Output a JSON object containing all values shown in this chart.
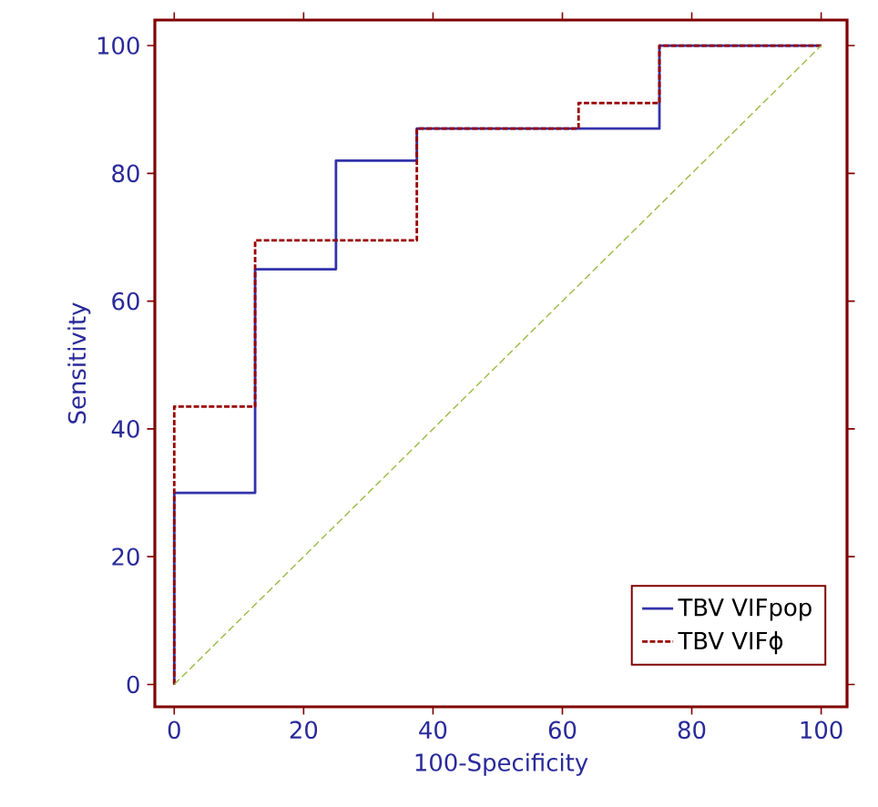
{
  "chart_data": {
    "type": "step",
    "xlabel": "100-Specificity",
    "ylabel": "Sensitivity",
    "xlim": [
      -3,
      104
    ],
    "ylim": [
      -3.5,
      104
    ],
    "xticks": [
      0,
      20,
      40,
      60,
      80,
      100
    ],
    "yticks": [
      0,
      20,
      40,
      60,
      80,
      100
    ],
    "legend": "bottom right",
    "grid": false,
    "marker": "none",
    "series": [
      {
        "name": "TBV VIFpop",
        "color": "#3333aa",
        "line_style": "solid",
        "x": [
          0,
          0,
          12.5,
          25,
          37.5,
          75,
          100
        ],
        "values": [
          0,
          30,
          65,
          82,
          87,
          100,
          100
        ]
      },
      {
        "name": "TBV VIFϕ",
        "color": "#990000",
        "line_style": "dashed",
        "x": [
          0,
          0,
          12.5,
          37.5,
          62.5,
          75,
          100
        ],
        "values": [
          0,
          43.5,
          69.5,
          87,
          91,
          100,
          100
        ]
      },
      {
        "type": "line",
        "color": "#99bb44",
        "line_style": "dashed",
        "x": [
          0,
          100
        ],
        "values": [
          0,
          100
        ]
      }
    ]
  }
}
